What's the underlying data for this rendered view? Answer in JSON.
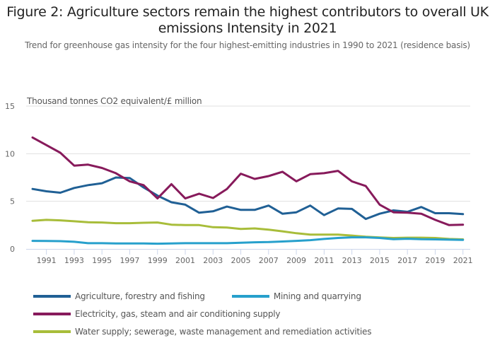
{
  "chart_data": {
    "type": "line",
    "title": "Figure 2: Agriculture sectors remain the highest contributors to overall UK emissions Intensity in 2021",
    "subtitle": "Trend for greenhouse gas intensity for the four highest-emitting industries in 1990 to 2021 (residence basis)",
    "ylabel": "Thousand tonnes CO2 equivalent/£ million",
    "xlabel": "",
    "x": [
      1990,
      1991,
      1992,
      1993,
      1994,
      1995,
      1996,
      1997,
      1998,
      1999,
      2000,
      2001,
      2002,
      2003,
      2004,
      2005,
      2006,
      2007,
      2008,
      2009,
      2010,
      2011,
      2012,
      2013,
      2014,
      2015,
      2016,
      2017,
      2018,
      2019,
      2020,
      2021
    ],
    "x_tick_labels": [
      "1991",
      "1993",
      "1995",
      "1997",
      "1999",
      "2001",
      "2003",
      "2005",
      "2007",
      "2009",
      "2011",
      "2013",
      "2015",
      "2017",
      "2019",
      "2021"
    ],
    "y_tick_labels": [
      "0",
      "5",
      "10",
      "15"
    ],
    "y_ticks": [
      0,
      5,
      10,
      15
    ],
    "ylim": [
      0,
      15
    ],
    "xlim": [
      1990,
      2021
    ],
    "grid": true,
    "legend_position": "bottom-left",
    "series": [
      {
        "name": "Agriculture, forestry and fishing",
        "color": "#206095",
        "values": [
          6.3,
          6.05,
          5.9,
          6.4,
          6.7,
          6.9,
          7.5,
          7.45,
          6.45,
          5.6,
          4.9,
          4.65,
          3.8,
          3.95,
          4.45,
          4.1,
          4.1,
          4.55,
          3.7,
          3.85,
          4.55,
          3.55,
          4.25,
          4.2,
          3.15,
          3.7,
          4.05,
          3.9,
          4.4,
          3.75,
          3.75,
          3.65
        ]
      },
      {
        "name": "Mining and quarrying",
        "color": "#27a0cc",
        "values": [
          0.85,
          0.83,
          0.82,
          0.75,
          0.6,
          0.6,
          0.58,
          0.58,
          0.58,
          0.55,
          0.58,
          0.6,
          0.6,
          0.6,
          0.6,
          0.65,
          0.7,
          0.72,
          0.78,
          0.85,
          0.92,
          1.05,
          1.15,
          1.22,
          1.22,
          1.15,
          1.02,
          1.07,
          1.02,
          1.0,
          0.97,
          0.95
        ]
      },
      {
        "name": "Electricity, gas, steam and air conditioning supply",
        "color": "#871a5b",
        "values": [
          11.7,
          10.9,
          10.1,
          8.75,
          8.85,
          8.5,
          7.95,
          7.1,
          6.7,
          5.3,
          6.8,
          5.3,
          5.8,
          5.35,
          6.3,
          7.9,
          7.35,
          7.65,
          8.1,
          7.1,
          7.85,
          7.95,
          8.2,
          7.1,
          6.6,
          4.65,
          3.85,
          3.8,
          3.7,
          3.05,
          2.5,
          2.55
        ]
      },
      {
        "name": "Water supply; sewerage, waste management and remediation activities",
        "color": "#a8bd3a",
        "values": [
          2.95,
          3.05,
          3.0,
          2.9,
          2.8,
          2.78,
          2.7,
          2.7,
          2.75,
          2.78,
          2.55,
          2.5,
          2.5,
          2.28,
          2.25,
          2.1,
          2.15,
          2.03,
          1.85,
          1.65,
          1.5,
          1.5,
          1.5,
          1.4,
          1.28,
          1.2,
          1.15,
          1.18,
          1.18,
          1.15,
          1.05,
          1.0
        ]
      }
    ]
  },
  "legend": {
    "rows": [
      [
        0,
        1
      ],
      [
        2
      ],
      [
        3
      ]
    ]
  }
}
